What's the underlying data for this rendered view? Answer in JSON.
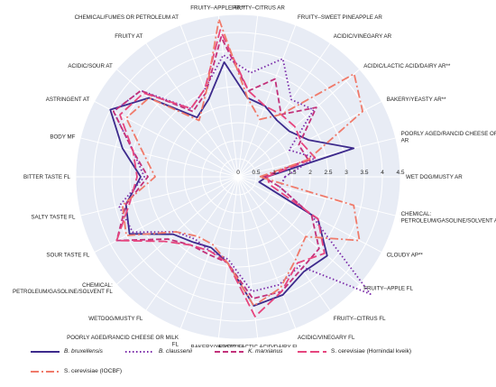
{
  "chart_data": {
    "type": "radar",
    "r_ticks": [
      0,
      0.5,
      1,
      1.5,
      2,
      2.5,
      3,
      3.5,
      4,
      4.5
    ],
    "r_max": 4.5,
    "grid": true,
    "legend_position": "bottom",
    "axes": [
      "WET DOG/MUSTY AR",
      "POORLY AGED/RANCID CHEESE OR MILK AR",
      "BAKERY/YEASTY AR**",
      "ACIDIC/LACTIC ACID/DAIRY AR**",
      "ACIDIC/VINEGARY AR",
      "FRUITY--SWEET PINEAPPLE AR",
      "FRUITY--CITRUS AR",
      "FRUITY--APPLE AR**",
      "CHEMICAL/FUMES OR PETROLEUM AT",
      "FRUITY AT",
      "ACIDIC/SOUR AT",
      "ASTRINGENT AT",
      "BODY MF",
      "BITTER TASTE FL",
      "SALTY TASTE FL",
      "SOUR TASTE FL",
      "CHEMICAL: PETROLEUM/GASOLINE/SOLVENT FL",
      "WETDOG/MUSTY FL",
      "POORLY AGED/RANCID CHEESE OR MILK FL",
      "BAKERY/YEASTY FL",
      "ACIDIC/LACTIC ACID/DAIRY FL",
      "ACIDIC/VINEGARY FL",
      "FRUITY--CITRUS FL",
      "FRUITY--APPLE FL",
      "CLOUDY AP**",
      "CHEMICAL: PETROLEUM/GASOLINE/SOLVENT AR**"
    ],
    "series": [
      {
        "name": "B. bruxellensis",
        "color": "#3d2a8c",
        "dash": "solid",
        "values": [
          0.8,
          3.3,
          2.2,
          1.9,
          1.9,
          2.1,
          2.2,
          3.2,
          2.3,
          2.0,
          3.3,
          4.0,
          3.3,
          2.7,
          3.2,
          3.4,
          2.4,
          2.2,
          2.1,
          2.4,
          3.6,
          3.5,
          3.2,
          3.3,
          2.5,
          0.6
        ]
      },
      {
        "name": "B. claussenii",
        "color": "#7a2aa8",
        "dash": "dot",
        "values": [
          1.3,
          2.2,
          1.6,
          2.8,
          2.6,
          3.5,
          2.9,
          3.4,
          2.6,
          2.3,
          3.6,
          3.9,
          3.0,
          2.6,
          3.4,
          3.3,
          2.3,
          2.1,
          2.2,
          2.3,
          3.2,
          3.2,
          3.0,
          4.9,
          2.3,
          1.2
        ]
      },
      {
        "name": "K. marxianus",
        "color": "#c2317a",
        "dash": "dash",
        "values": [
          0.7,
          2.0,
          1.9,
          2.9,
          2.1,
          2.9,
          2.4,
          3.9,
          2.5,
          2.2,
          3.6,
          3.9,
          3.0,
          2.5,
          3.2,
          3.8,
          2.6,
          2.3,
          2.3,
          2.4,
          3.4,
          3.4,
          3.1,
          3.0,
          2.3,
          1.2
        ]
      },
      {
        "name": "S. cerevisiae (Hornindal kveik)",
        "color": "#e6457e",
        "dash": "longdash",
        "values": [
          0.8,
          2.2,
          2.0,
          2.1,
          2.1,
          2.1,
          2.4,
          4.1,
          2.6,
          2.3,
          3.5,
          3.7,
          3.0,
          2.8,
          3.1,
          3.8,
          2.7,
          2.3,
          2.2,
          2.4,
          3.9,
          3.4,
          2.9,
          3.2,
          2.5,
          0.9
        ]
      },
      {
        "name": "S. cerevisiae (IOCBF)",
        "color": "#f07a6a",
        "dash": "dashdot",
        "values": [
          0.6,
          2.0,
          3.9,
          4.3,
          2.1,
          1.7,
          2.2,
          4.4,
          2.5,
          1.9,
          3.3,
          3.5,
          2.7,
          2.3,
          3.3,
          3.5,
          2.3,
          2.0,
          2.0,
          2.4,
          3.6,
          3.3,
          2.8,
          2.5,
          3.8,
          3.3
        ]
      }
    ]
  }
}
